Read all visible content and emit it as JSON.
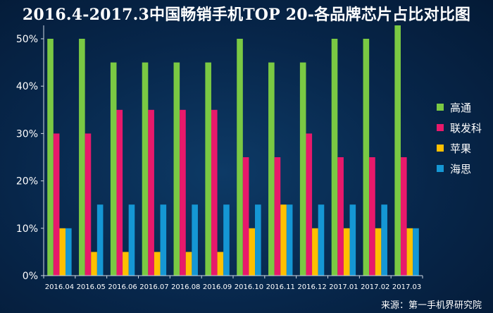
{
  "title": "2016.4-2017.3中国畅销手机TOP 20-各品牌芯片占比对比图",
  "source": "来源：第一手机界研究院",
  "chart_data": {
    "type": "bar",
    "title": "2016.4-2017.3中国畅销手机TOP 20-各品牌芯片占比对比图",
    "xlabel": "",
    "ylabel": "",
    "ylim": [
      0,
      52
    ],
    "yticks": [
      "0%",
      "10%",
      "20%",
      "30%",
      "40%",
      "50%"
    ],
    "grid": false,
    "legend_position": "right",
    "categories": [
      "2016.04",
      "2016.05",
      "2016.06",
      "2016.07",
      "2016.08",
      "2016.09",
      "2016.10",
      "2016.11",
      "2016.12",
      "2017.01",
      "2017.02",
      "2017.03"
    ],
    "series": [
      {
        "name": "高通",
        "color": "#7ac943",
        "values": [
          50,
          50,
          45,
          45,
          45,
          45,
          50,
          45,
          45,
          50,
          50,
          55
        ]
      },
      {
        "name": "联发科",
        "color": "#e8196b",
        "values": [
          30,
          30,
          35,
          35,
          35,
          35,
          25,
          25,
          30,
          25,
          25,
          25
        ]
      },
      {
        "name": "苹果",
        "color": "#ffc000",
        "values": [
          10,
          5,
          5,
          5,
          5,
          5,
          10,
          15,
          10,
          10,
          10,
          10
        ]
      },
      {
        "name": "海思",
        "color": "#1597d4",
        "values": [
          10,
          15,
          15,
          15,
          15,
          15,
          15,
          15,
          15,
          15,
          15,
          10
        ]
      }
    ]
  }
}
